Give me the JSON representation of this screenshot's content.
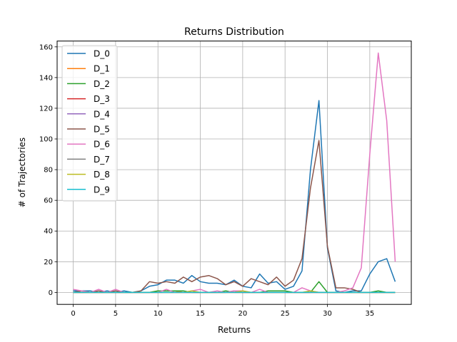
{
  "chart_data": {
    "type": "line",
    "title": "Returns Distribution",
    "xlabel": "Returns",
    "ylabel": "# of Trajectories",
    "xlim": [
      -1.9,
      39.9
    ],
    "ylim": [
      -7.8,
      163.8
    ],
    "xticks": [
      0,
      5,
      10,
      15,
      20,
      25,
      30,
      35
    ],
    "yticks": [
      0,
      20,
      40,
      60,
      80,
      100,
      120,
      140,
      160
    ],
    "grid": true,
    "legend_position": "upper-left",
    "x": [
      0,
      1,
      2,
      3,
      4,
      5,
      6,
      7,
      8,
      9,
      10,
      11,
      12,
      13,
      14,
      15,
      16,
      17,
      18,
      19,
      20,
      21,
      22,
      23,
      24,
      25,
      26,
      27,
      28,
      29,
      30,
      31,
      32,
      33,
      34,
      35,
      36,
      37,
      38
    ],
    "series": [
      {
        "name": "D_0",
        "color": "#1f77b4",
        "values": [
          1,
          1,
          1,
          0,
          1,
          0,
          1,
          0,
          1,
          4,
          5,
          8,
          8,
          6,
          11,
          7,
          6,
          6,
          5,
          8,
          4,
          3,
          12,
          6,
          7,
          2,
          4,
          14,
          80,
          125,
          29,
          1,
          0,
          1,
          1,
          12,
          20,
          22,
          7
        ]
      },
      {
        "name": "D_1",
        "color": "#ff7f0e",
        "values": [
          0,
          0,
          0,
          0,
          0,
          0,
          0,
          0,
          0,
          0,
          1,
          1,
          1,
          0,
          0,
          0,
          0,
          0,
          0,
          1,
          0,
          0,
          0,
          0,
          0,
          0,
          0,
          0,
          0,
          0,
          0,
          0,
          0,
          0,
          0,
          0,
          0,
          0,
          0
        ]
      },
      {
        "name": "D_2",
        "color": "#2ca02c",
        "values": [
          0,
          0,
          0,
          0,
          0,
          0,
          0,
          0,
          0,
          0,
          1,
          1,
          1,
          1,
          0,
          0,
          0,
          0,
          1,
          0,
          0,
          0,
          0,
          1,
          1,
          1,
          0,
          0,
          0,
          7,
          0,
          0,
          0,
          0,
          0,
          0,
          1,
          0,
          0
        ]
      },
      {
        "name": "D_3",
        "color": "#d62728",
        "values": [
          0,
          0,
          0,
          0,
          0,
          0,
          0,
          0,
          0,
          0,
          0,
          0,
          0,
          0,
          0,
          0,
          0,
          0,
          0,
          0,
          0,
          0,
          0,
          0,
          0,
          0,
          0,
          0,
          0,
          0,
          0,
          0,
          0,
          0,
          0,
          0,
          0,
          0,
          0
        ]
      },
      {
        "name": "D_4",
        "color": "#9467bd",
        "values": [
          0,
          0,
          0,
          0,
          0,
          0,
          0,
          0,
          0,
          0,
          0,
          0,
          0,
          0,
          0,
          0,
          0,
          0,
          0,
          1,
          0,
          0,
          0,
          0,
          0,
          0,
          0,
          0,
          0,
          0,
          0,
          0,
          0,
          0,
          0,
          0,
          0,
          0,
          0
        ]
      },
      {
        "name": "D_5",
        "color": "#8c564b",
        "values": [
          0,
          1,
          0,
          1,
          0,
          1,
          0,
          0,
          1,
          7,
          6,
          7,
          6,
          10,
          7,
          10,
          11,
          9,
          5,
          7,
          4,
          9,
          7,
          5,
          10,
          4,
          8,
          22,
          68,
          99,
          30,
          3,
          3,
          2,
          0,
          0,
          0,
          0,
          0
        ]
      },
      {
        "name": "D_6",
        "color": "#e377c2",
        "values": [
          2,
          1,
          0,
          2,
          0,
          2,
          0,
          0,
          0,
          0,
          0,
          2,
          0,
          0,
          1,
          2,
          0,
          1,
          0,
          1,
          1,
          0,
          2,
          0,
          0,
          0,
          0,
          3,
          1,
          0,
          0,
          0,
          1,
          3,
          16,
          90,
          156,
          112,
          20
        ]
      },
      {
        "name": "D_7",
        "color": "#7f7f7f",
        "values": [
          0,
          0,
          0,
          0,
          0,
          0,
          0,
          0,
          0,
          0,
          0,
          0,
          0,
          0,
          0,
          0,
          0,
          0,
          0,
          0,
          0,
          0,
          0,
          0,
          0,
          0,
          0,
          0,
          0,
          0,
          0,
          0,
          0,
          0,
          0,
          0,
          0,
          0,
          0
        ]
      },
      {
        "name": "D_8",
        "color": "#bcbd22",
        "values": [
          0,
          0,
          0,
          0,
          0,
          0,
          0,
          0,
          0,
          0,
          0,
          0,
          0,
          0,
          1,
          0,
          0,
          0,
          0,
          0,
          1,
          0,
          0,
          0,
          0,
          0,
          0,
          0,
          1,
          0,
          0,
          0,
          0,
          0,
          0,
          0,
          0,
          0,
          0
        ]
      },
      {
        "name": "D_9",
        "color": "#17becf",
        "values": [
          0,
          0,
          0,
          0,
          0,
          0,
          0,
          0,
          0,
          0,
          0,
          0,
          0,
          0,
          0,
          0,
          0,
          0,
          0,
          0,
          0,
          0,
          0,
          0,
          0,
          0,
          0,
          0,
          0,
          0,
          0,
          0,
          0,
          0,
          0,
          0,
          0,
          0,
          0
        ]
      }
    ]
  }
}
